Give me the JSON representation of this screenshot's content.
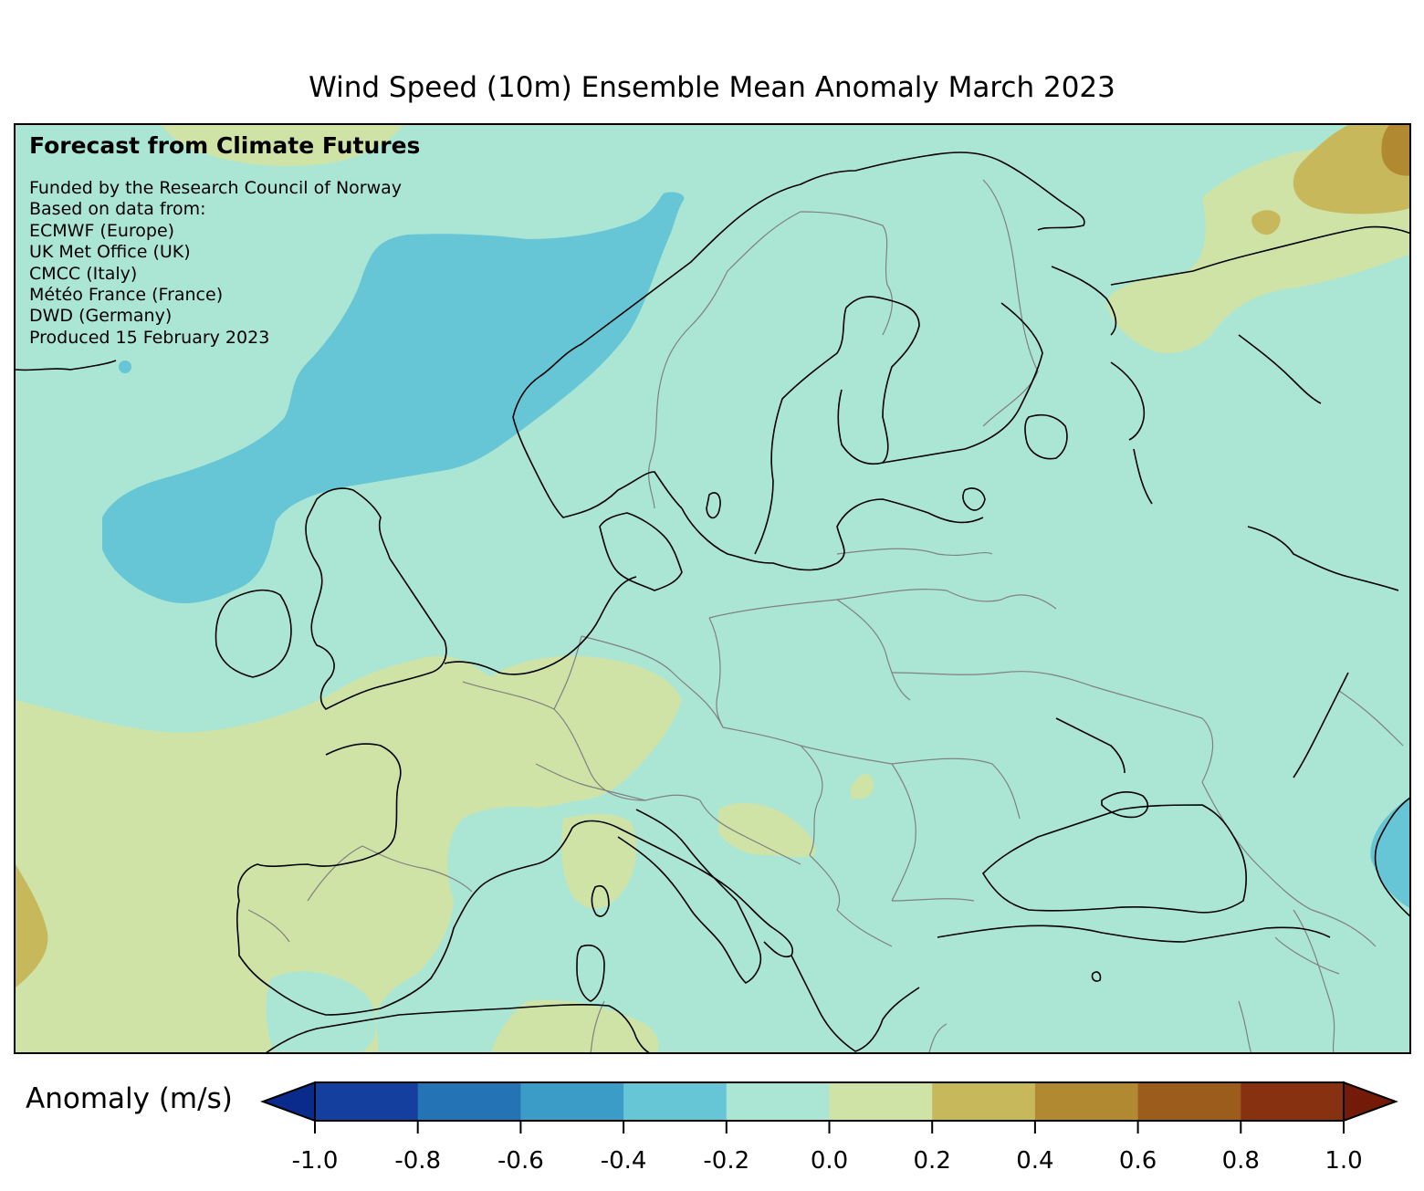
{
  "title": "Wind Speed (10m) Ensemble Mean Anomaly March 2023",
  "info": {
    "heading": "Forecast from Climate Futures",
    "lines": [
      "Funded by the Research Council of Norway",
      "Based on data from:",
      "ECMWF (Europe)",
      "UK Met Office (UK)",
      "CMCC (Italy)",
      "Météo France (France)",
      "DWD (Germany)",
      "Produced 15 February 2023"
    ]
  },
  "colorbar": {
    "label": "Anomaly (m/s)",
    "ticks": [
      "-1.0",
      "-0.8",
      "-0.6",
      "-0.4",
      "-0.2",
      "0.0",
      "0.2",
      "0.4",
      "0.6",
      "0.8",
      "1.0"
    ],
    "colors": [
      "#143f9f",
      "#2373b5",
      "#3c9cc8",
      "#67c6d5",
      "#abe6d4",
      "#cfe3a7",
      "#c7b85c",
      "#b08930",
      "#9b5c1c",
      "#873110"
    ],
    "under_color": "#0b2b8c",
    "over_color": "#741a08"
  },
  "legend_colors": {
    "coastline": "#000000",
    "borders": "#808080"
  }
}
